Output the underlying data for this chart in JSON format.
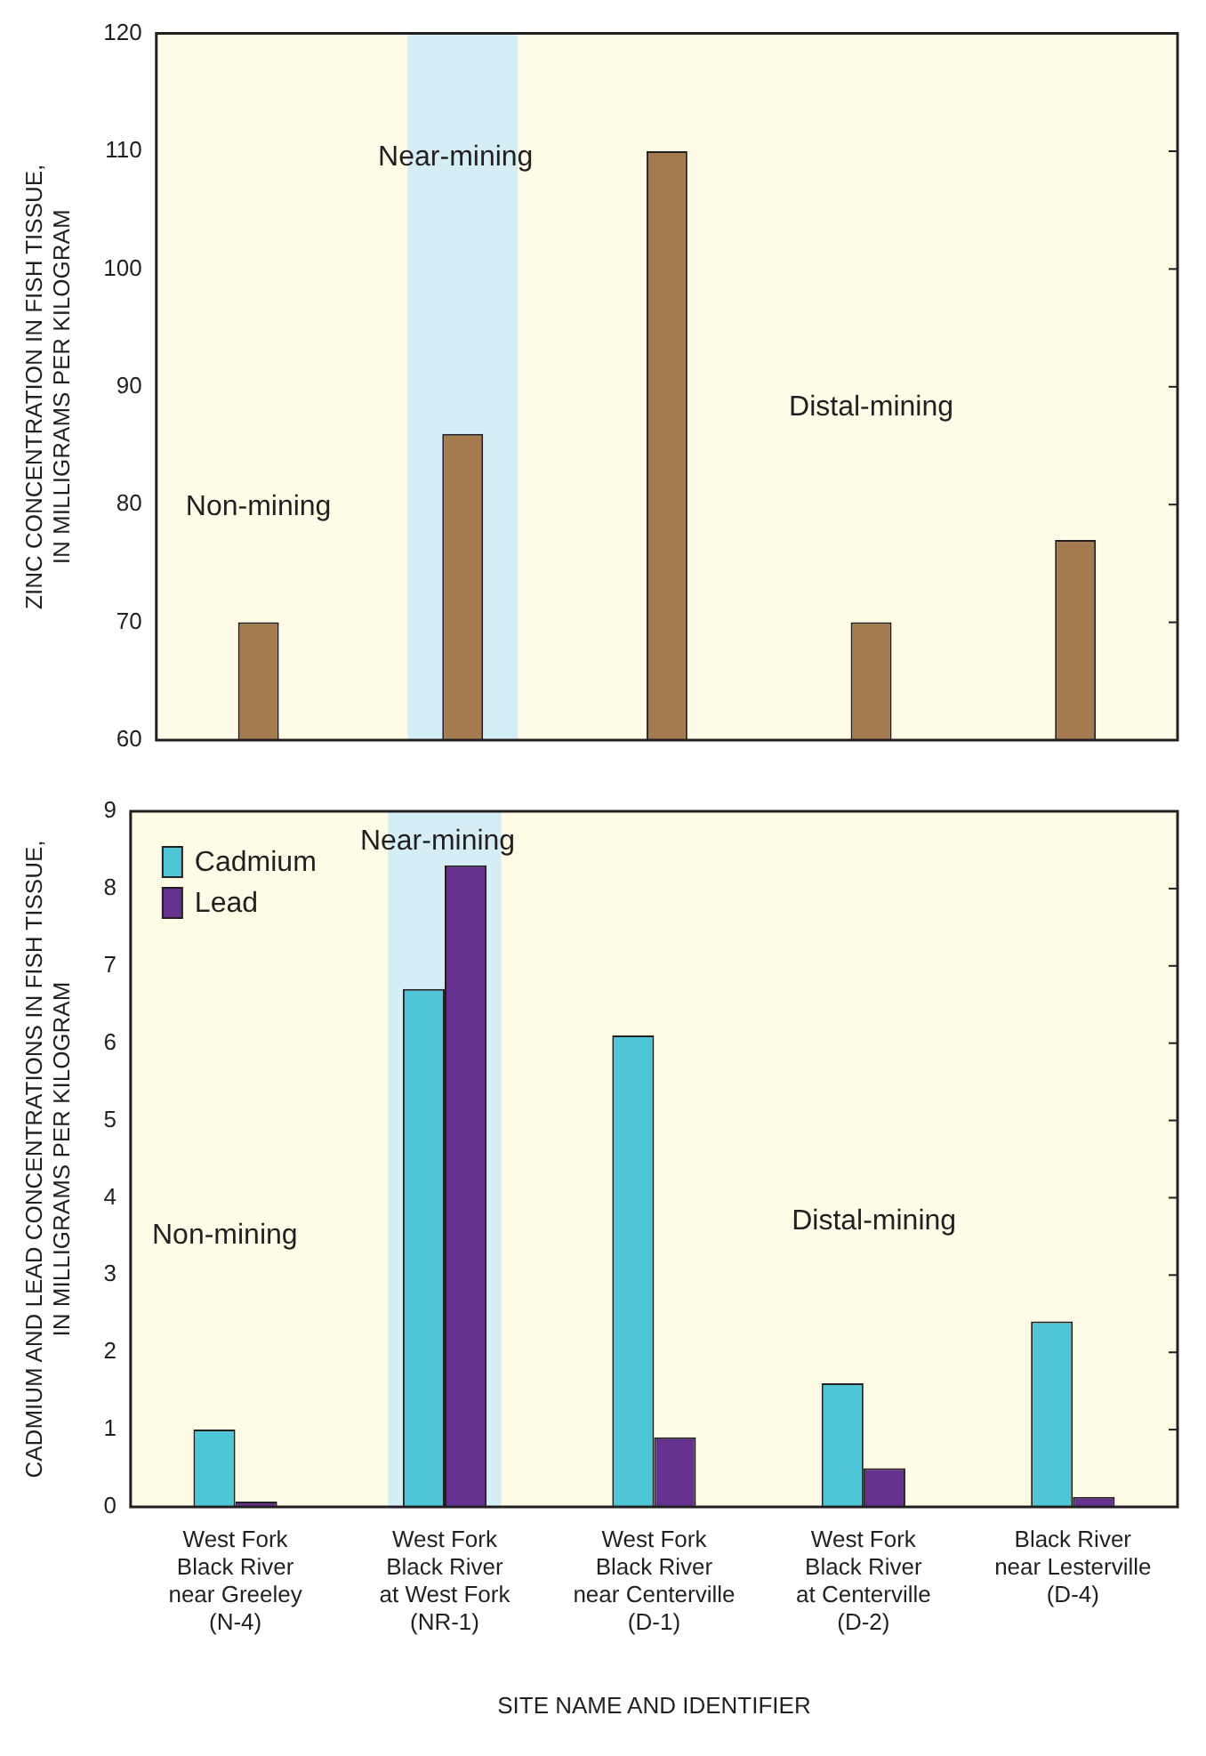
{
  "chart_data": [
    {
      "type": "bar",
      "ylabel": "ZINC CONCENTRATION IN FISH TISSUE,\nIN MILLIGRAMS PER KILOGRAM",
      "categories": [
        "West Fork\nBlack River\nnear Greeley\n(N-4)",
        "West Fork\nBlack River\nat West Fork\n(NR-1)",
        "West Fork\nBlack River\nnear Centerville\n(D-1)",
        "West Fork\nBlack River\nat Centerville\n(D-2)",
        "Black River\nnear Lesterville\n(D-4)"
      ],
      "series": [
        {
          "color": "#a57a4e",
          "values": [
            70,
            86,
            110,
            70,
            77
          ]
        }
      ],
      "ylim": [
        60,
        120
      ],
      "yticks": [
        60,
        70,
        80,
        90,
        100,
        110,
        120
      ],
      "tick_labels": "y",
      "bands": [
        {
          "axis": "x",
          "from": "West Fork\nBlack River\nat West Fork\n(NR-1)",
          "to": "West Fork\nBlack River\nat West Fork\n(NR-1)",
          "label": "Near-mining",
          "color": "#d5eef5"
        }
      ],
      "annotations": [
        "Non-mining",
        "Distal-mining"
      ]
    },
    {
      "type": "bar",
      "ylabel": "CADMIUM AND LEAD CONCENTRATIONS IN FISH TISSUE,\nIN MILLIGRAMS PER KILOGRAM",
      "xlabel": "SITE NAME AND IDENTIFIER",
      "categories": [
        "West Fork\nBlack River\nnear Greeley\n(N-4)",
        "West Fork\nBlack River\nat West Fork\n(NR-1)",
        "West Fork\nBlack River\nnear Centerville\n(D-1)",
        "West Fork\nBlack River\nat Centerville\n(D-2)",
        "Black River\nnear Lesterville\n(D-4)"
      ],
      "series": [
        {
          "name": "Cadmium",
          "color": "#4fc6d8",
          "values": [
            1.0,
            6.7,
            6.1,
            1.6,
            2.4
          ]
        },
        {
          "name": "Lead",
          "color": "#65318e",
          "values": [
            0.07,
            8.3,
            0.9,
            0.5,
            0.13
          ]
        }
      ],
      "ylim": [
        0,
        9
      ],
      "yticks": [
        0,
        1,
        2,
        3,
        4,
        5,
        6,
        7,
        8,
        9
      ],
      "legend": "top left",
      "bands": [
        {
          "axis": "x",
          "from": "West Fork\nBlack River\nat West Fork\n(NR-1)",
          "to": "West Fork\nBlack River\nat West Fork\n(NR-1)",
          "label": "Near-mining",
          "color": "#d5eef5"
        }
      ],
      "annotations": [
        "Non-mining",
        "Distal-mining"
      ]
    }
  ]
}
